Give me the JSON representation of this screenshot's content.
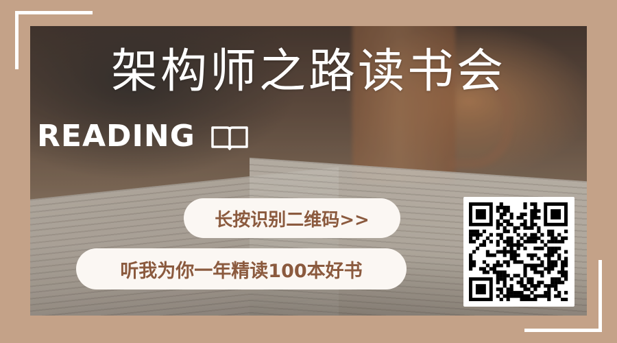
{
  "banner": {
    "title": "架构师之路读书会",
    "reading_label": "READING",
    "pill_1": "长按识别二维码>>",
    "pill_2": "听我为你一年精读100本好书"
  },
  "colors": {
    "background": "#c4a288",
    "pill_text": "#8b5a3e",
    "pill_bg": "#fbf7f3",
    "title_text": "#ffffff"
  },
  "icons": {
    "book": "open-book-icon",
    "qr": "qr-code"
  }
}
